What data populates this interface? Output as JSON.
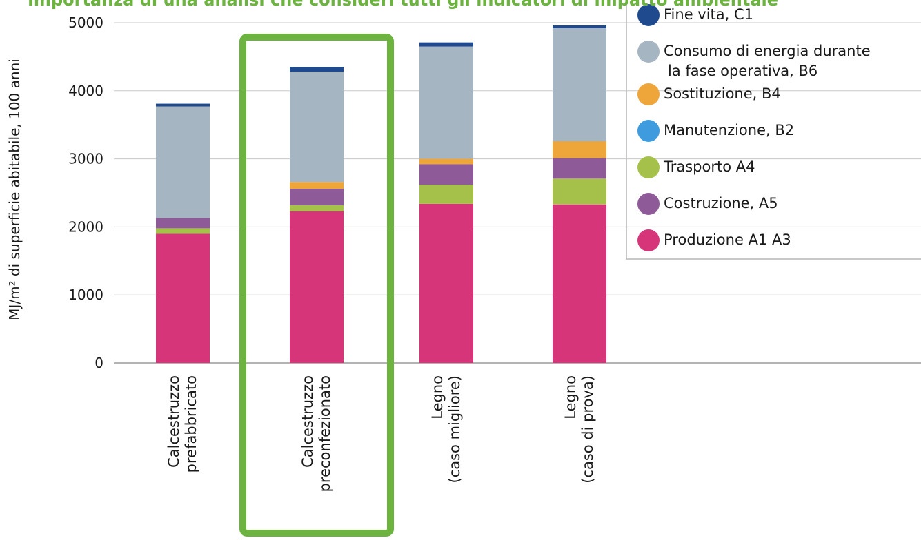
{
  "chart_data": {
    "type": "bar",
    "stacked": true,
    "title": "Importanza di una analisi che consideri tutti gli indicatori di impatto ambientale",
    "ylabel": "MJ/m² di superficie abitabile, 100 anni",
    "xlabel": "",
    "ylim": [
      0,
      5000
    ],
    "yticks": [
      "0",
      "1000",
      "2000",
      "3000",
      "4000",
      "5000"
    ],
    "grid": true,
    "legend_position": "top-right",
    "categories": [
      [
        "Calcestruzzo",
        "prefabbricato"
      ],
      [
        "Calcestruzzo",
        "preconfezionato"
      ],
      [
        "Legno",
        "(caso migliore)"
      ],
      [
        "Legno",
        "(caso di prova)"
      ]
    ],
    "highlighted_category": 1,
    "series": [
      {
        "name": "Produzione A1 A3",
        "color": "#d6357a",
        "values": [
          1900,
          2230,
          2340,
          2330
        ]
      },
      {
        "name": "Trasporto A4",
        "color": "#a5c14a",
        "values": [
          80,
          90,
          280,
          380
        ]
      },
      {
        "name": "Costruzione, A5",
        "color": "#8e5a98",
        "values": [
          150,
          240,
          300,
          300
        ]
      },
      {
        "name": "Manutenzione, B2",
        "color": "#3d9bde",
        "values": [
          0,
          0,
          0,
          0
        ]
      },
      {
        "name": "Sostituzione, B4",
        "color": "#eea53a",
        "values": [
          0,
          100,
          80,
          250
        ]
      },
      {
        "name": "Consumo di energia durante la fase operativa, B6",
        "color": "#a5b5c2",
        "values": [
          1640,
          1620,
          1650,
          1660
        ]
      },
      {
        "name": "Fine vita, C1",
        "color": "#1f4b8e",
        "values": [
          40,
          70,
          60,
          40
        ]
      }
    ],
    "legend_order": [
      "Fine vita, C1",
      "Consumo di energia durante la fase operativa, B6",
      "Sostituzione, B4",
      "Manutenzione, B2",
      "Trasporto A4",
      "Costruzione, A5",
      "Produzione A1 A3"
    ],
    "legend_lines": [
      [
        "Fine vita, C1"
      ],
      [
        "Consumo di energia durante",
        "la fase operativa, B6"
      ],
      [
        "Sostituzione, B4"
      ],
      [
        "Manutenzione, B2"
      ],
      [
        "Trasporto A4"
      ],
      [
        "Costruzione, A5"
      ],
      [
        "Produzione A1 A3"
      ]
    ],
    "colors": {
      "highlight": "#6db33f",
      "title": "#6db33f"
    }
  }
}
